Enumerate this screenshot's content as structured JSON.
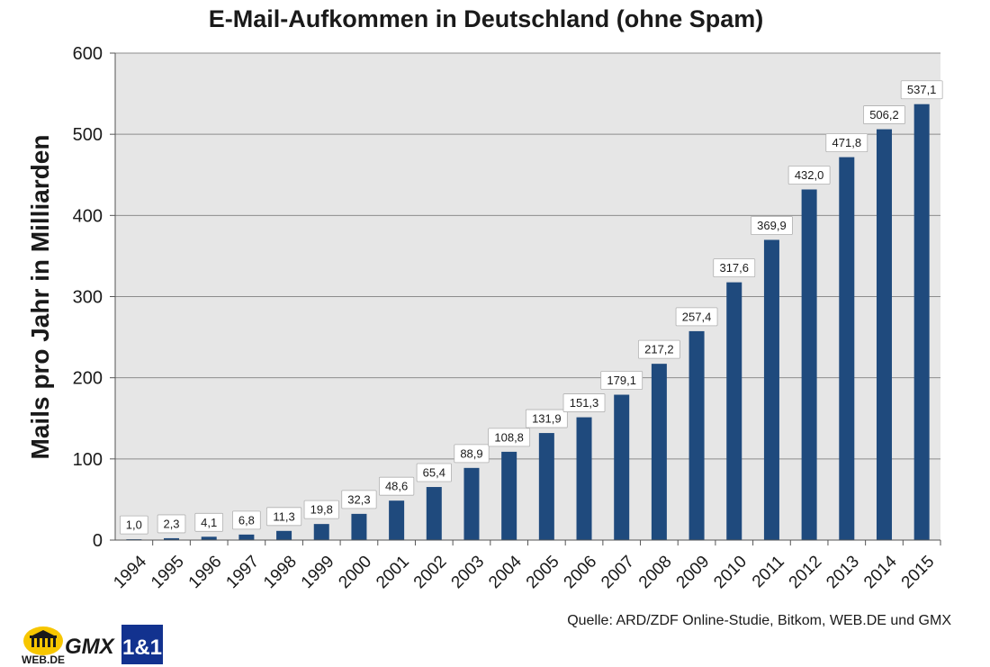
{
  "chart_data": {
    "type": "bar",
    "title": "E-Mail-Aufkommen in Deutschland (ohne Spam)",
    "xlabel": "",
    "ylabel": "Mails pro Jahr in Milliarden",
    "categories": [
      "1994",
      "1995",
      "1996",
      "1997",
      "1998",
      "1999",
      "2000",
      "2001",
      "2002",
      "2003",
      "2004",
      "2005",
      "2006",
      "2007",
      "2008",
      "2009",
      "2010",
      "2011",
      "2012",
      "2013",
      "2014",
      "2015"
    ],
    "values": [
      1.0,
      2.3,
      4.1,
      6.8,
      11.3,
      19.8,
      32.3,
      48.6,
      65.4,
      88.9,
      108.8,
      131.9,
      151.3,
      179.1,
      217.2,
      257.4,
      317.6,
      369.9,
      432.0,
      471.8,
      506.2,
      537.1
    ],
    "value_labels": [
      "1,0",
      "2,3",
      "4,1",
      "6,8",
      "11,3",
      "19,8",
      "32,3",
      "48,6",
      "65,4",
      "88,9",
      "108,8",
      "131,9",
      "151,3",
      "179,1",
      "217,2",
      "257,4",
      "317,6",
      "369,9",
      "432,0",
      "471,8",
      "506,2",
      "537,1"
    ],
    "ylim": [
      0,
      600
    ],
    "yticks": [
      0,
      100,
      200,
      300,
      400,
      500,
      600
    ],
    "grid": true,
    "legend": "none",
    "colors": {
      "bar": "#1f4a7d",
      "plot_bg": "#e6e6e6",
      "grid": "#8c8c8c"
    }
  },
  "source": "Quelle: ARD/ZDF Online-Studie, Bitkom, WEB.DE und GMX",
  "logos": {
    "webde": "WEB.DE",
    "gmx": "GMX",
    "oneandone": "1&1"
  }
}
